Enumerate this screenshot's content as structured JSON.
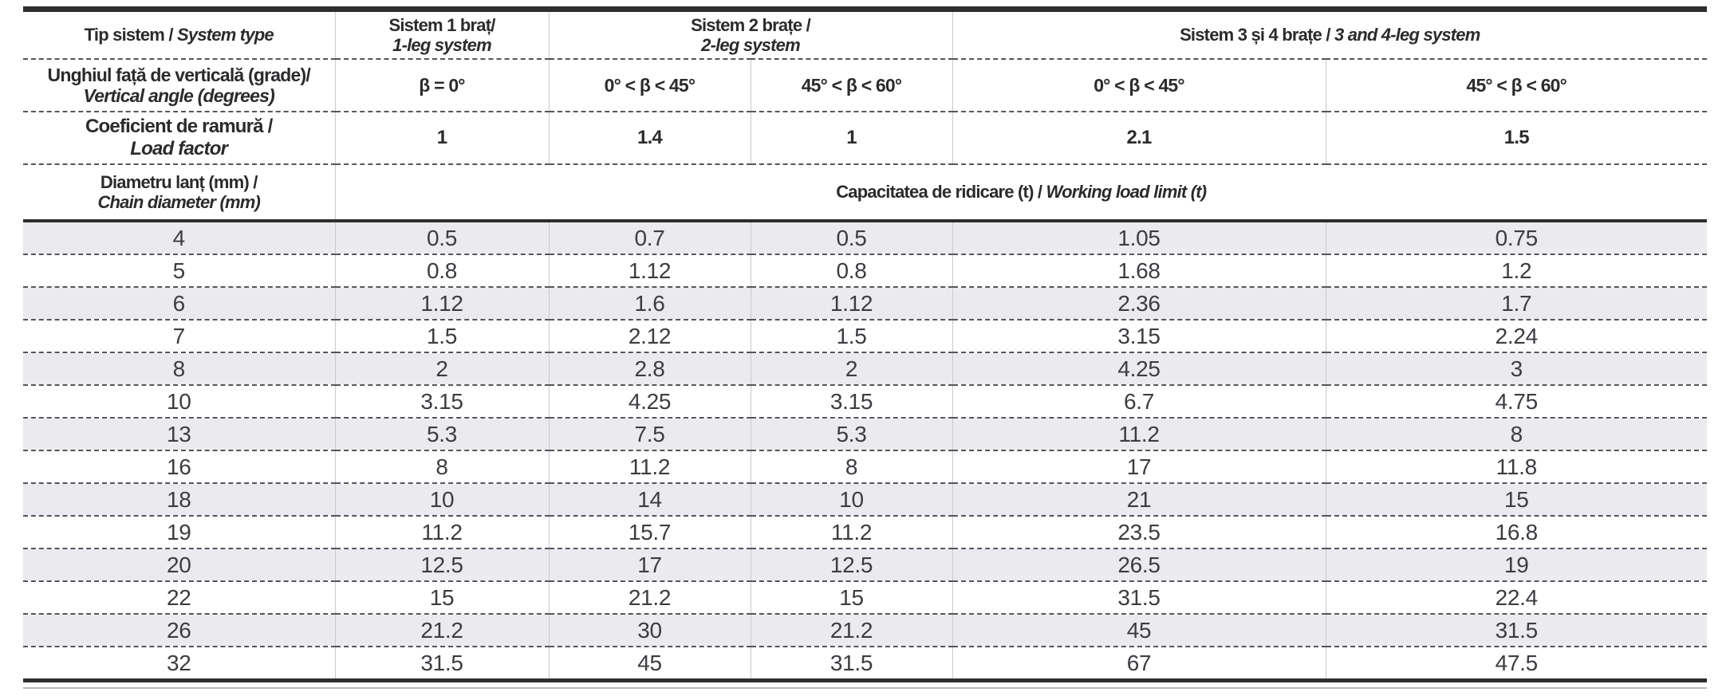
{
  "table": {
    "system_type_header": {
      "ro": "Tip sistem /",
      "en": "System type"
    },
    "systems": [
      {
        "ro": "Sistem 1 braț/",
        "en": "1-leg system"
      },
      {
        "ro": "Sistem 2 brațe /",
        "en": "2-leg system"
      },
      {
        "ro": "Sistem 3 și 4 brațe /",
        "en": "3 and 4-leg system"
      }
    ],
    "vertical_angle_header": {
      "ro": "Unghiul față de verticală (grade)/",
      "en": "Vertical angle (degrees)"
    },
    "angles": [
      "β = 0°",
      "0° < β < 45°",
      "45° < β < 60°",
      "0° < β < 45°",
      "45° < β < 60°"
    ],
    "load_factor_header": {
      "ro": "Coeficient de ramură /",
      "en": "Load factor"
    },
    "load_factors": [
      "1",
      "1.4",
      "1",
      "2.1",
      "1.5"
    ],
    "chain_diameter_header": {
      "ro": "Diametru lanț (mm) /",
      "en": "Chain diameter (mm)"
    },
    "wll_header": {
      "ro": "Capacitatea de ridicare (t) /",
      "en": "Working load limit (t)"
    },
    "rows": [
      {
        "diameter": "4",
        "values": [
          "0.5",
          "0.7",
          "0.5",
          "1.05",
          "0.75"
        ]
      },
      {
        "diameter": "5",
        "values": [
          "0.8",
          "1.12",
          "0.8",
          "1.68",
          "1.2"
        ]
      },
      {
        "diameter": "6",
        "values": [
          "1.12",
          "1.6",
          "1.12",
          "2.36",
          "1.7"
        ]
      },
      {
        "diameter": "7",
        "values": [
          "1.5",
          "2.12",
          "1.5",
          "3.15",
          "2.24"
        ]
      },
      {
        "diameter": "8",
        "values": [
          "2",
          "2.8",
          "2",
          "4.25",
          "3"
        ]
      },
      {
        "diameter": "10",
        "values": [
          "3.15",
          "4.25",
          "3.15",
          "6.7",
          "4.75"
        ]
      },
      {
        "diameter": "13",
        "values": [
          "5.3",
          "7.5",
          "5.3",
          "11.2",
          "8"
        ]
      },
      {
        "diameter": "16",
        "values": [
          "8",
          "11.2",
          "8",
          "17",
          "11.8"
        ]
      },
      {
        "diameter": "18",
        "values": [
          "10",
          "14",
          "10",
          "21",
          "15"
        ]
      },
      {
        "diameter": "19",
        "values": [
          "11.2",
          "15.7",
          "11.2",
          "23.5",
          "16.8"
        ]
      },
      {
        "diameter": "20",
        "values": [
          "12.5",
          "17",
          "12.5",
          "26.5",
          "19"
        ]
      },
      {
        "diameter": "22",
        "values": [
          "15",
          "21.2",
          "15",
          "31.5",
          "22.4"
        ]
      },
      {
        "diameter": "26",
        "values": [
          "21.2",
          "30",
          "21.2",
          "45",
          "31.5"
        ]
      },
      {
        "diameter": "32",
        "values": [
          "31.5",
          "45",
          "31.5",
          "67",
          "47.5"
        ]
      }
    ]
  },
  "colors": {
    "stripe_row_bg": "#eaeaef",
    "thick_border": "#2e2e2e",
    "dashed_line": "#55555a",
    "column_divider": "#c9c9ce",
    "header_text": "#2b2b2e",
    "data_text": "#3c3c41",
    "page_bg": "#ffffff"
  }
}
